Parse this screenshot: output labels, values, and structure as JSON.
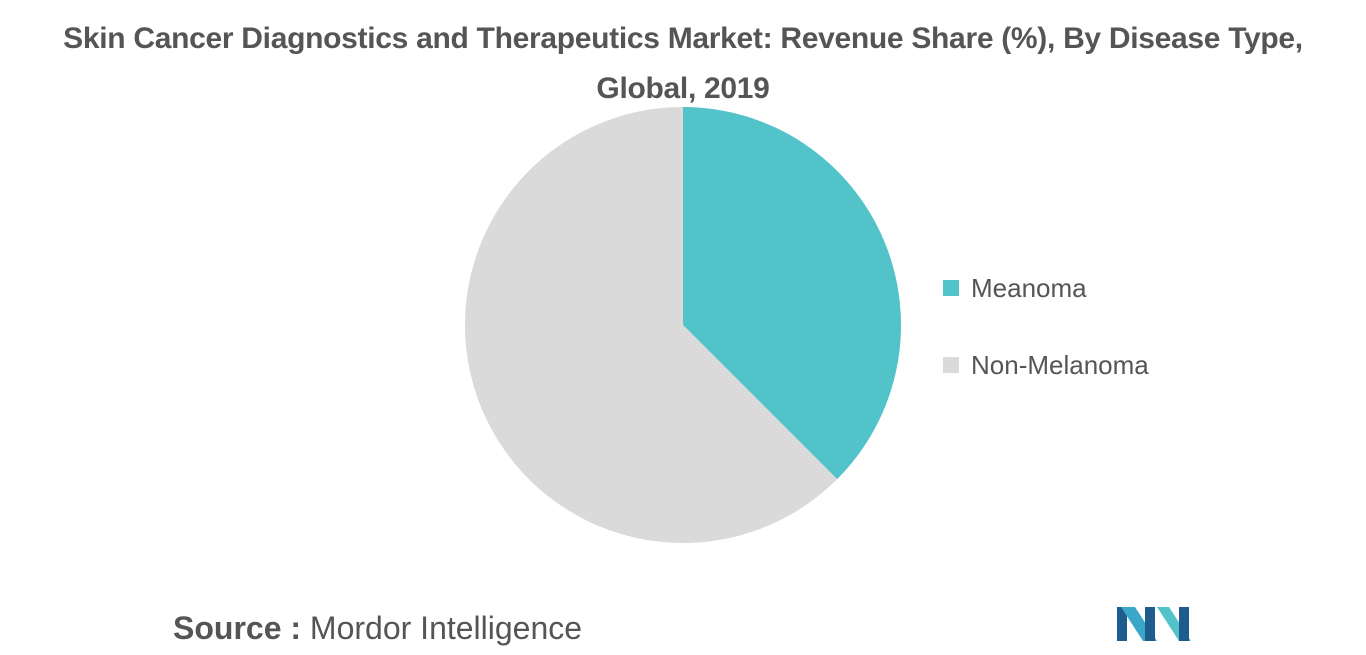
{
  "title_line1": "Skin Cancer Diagnostics and Therapeutics Market: Revenue Share (%), By Disease Type,",
  "title_line2": "Global, 2019",
  "source_label": "Source :",
  "source_name": "Mordor Intelligence",
  "logo_icon": "mordor-intelligence-logo",
  "chart_data": {
    "type": "pie",
    "title": "Skin Cancer Diagnostics and Therapeutics Market: Revenue Share (%), By Disease Type, Global, 2019",
    "categories": [
      "Meanoma",
      "Non-Melanoma"
    ],
    "values": [
      37.5,
      62.5
    ],
    "colors": [
      "#52c3c8",
      "#dadada"
    ],
    "legend_position": "right",
    "start_angle": "12 o'clock",
    "direction": "clockwise"
  }
}
